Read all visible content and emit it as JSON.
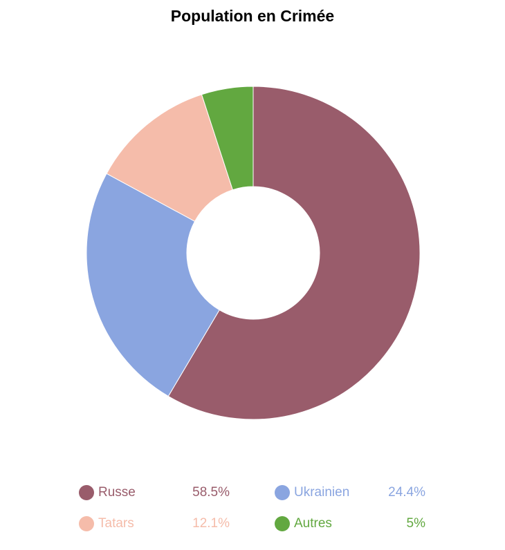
{
  "chart_data": {
    "type": "pie",
    "title": "Population en Crimée",
    "donut": true,
    "legend_position": "bottom",
    "slices": [
      {
        "label": "Russe",
        "value": 58.5,
        "value_label": "58.5%",
        "color": "#995c6b"
      },
      {
        "label": "Ukrainien",
        "value": 24.4,
        "value_label": "24.4%",
        "color": "#8aa5e0"
      },
      {
        "label": "Tatars",
        "value": 12.1,
        "value_label": "12.1%",
        "color": "#f5bcaa"
      },
      {
        "label": "Autres",
        "value": 5,
        "value_label": "5%",
        "color": "#62a840"
      }
    ]
  }
}
